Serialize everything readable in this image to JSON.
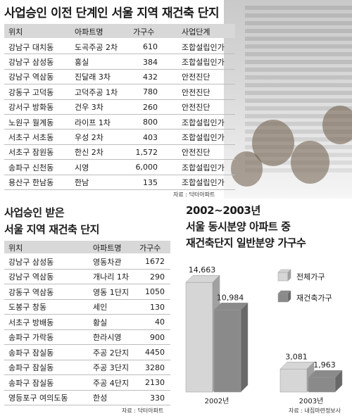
{
  "table1": {
    "title": "사업승인 이전 단계인 서울 지역 재건축 단지",
    "headers": [
      "위치",
      "아파트명",
      "가구수",
      "사업단계"
    ],
    "rows": [
      [
        "강남구 대치동",
        "도곡주공 2차",
        "610",
        "조합설립인가"
      ],
      [
        "강남구 삼성동",
        "홍실",
        "384",
        "조합설립인가"
      ],
      [
        "강남구 역삼동",
        "진달래 3차",
        "432",
        "안전진단"
      ],
      [
        "강동구 고덕동",
        "고덕주공 1차",
        "780",
        "안전진단"
      ],
      [
        "강서구 방화동",
        "건우 3차",
        "260",
        "안전진단"
      ],
      [
        "노원구 월계동",
        "라이프 1차",
        "800",
        "조합설립인가"
      ],
      [
        "서초구 서초동",
        "우성 2차",
        "403",
        "조합설립인가"
      ],
      [
        "서초구 잠원동",
        "한신 2차",
        "1,572",
        "안전진단"
      ],
      [
        "송파구 신천동",
        "시영",
        "6,000",
        "조합설립인가"
      ],
      [
        "용산구 한남동",
        "한남",
        "135",
        "조합설립인가"
      ]
    ],
    "source": "자료 : 닥터아파트"
  },
  "table2": {
    "title_line1": "사업승인 받은",
    "title_line2": "서울 지역 재건축 단지",
    "headers": [
      "위치",
      "아파트명",
      "가구수"
    ],
    "rows": [
      [
        "강남구 삼성동",
        "영동차관",
        "1672"
      ],
      [
        "강남구 역삼동",
        "개나리 1차",
        "290"
      ],
      [
        "강동구 역삼동",
        "영동 1단지",
        "1050"
      ],
      [
        "도봉구 창동",
        "세인",
        "130"
      ],
      [
        "서초구 방배동",
        "황실",
        "40"
      ],
      [
        "송파구 가락동",
        "한라시영",
        "900"
      ],
      [
        "송파구 잠실동",
        "주공 2단지",
        "4450"
      ],
      [
        "송파구 잠실동",
        "주공 3단지",
        "3280"
      ],
      [
        "송파구 잠실동",
        "주공 4단지",
        "2130"
      ],
      [
        "영등포구 여의도동",
        "한성",
        "330"
      ]
    ],
    "source": "자료 : 닥터아파트"
  },
  "chart_data": {
    "type": "bar",
    "title_line1": "2002~2003년",
    "title_line2": "서울 동시분양 아파트 중",
    "title_line3": "재건축단지 일반분양 가구수",
    "categories": [
      "2002년",
      "2003년"
    ],
    "series": [
      {
        "name": "전체가구",
        "values": [
          14663,
          3081
        ],
        "color": "#d6d6d6"
      },
      {
        "name": "재건축가구",
        "values": [
          10984,
          1963
        ],
        "color": "#8a8a8a"
      }
    ],
    "data_labels": [
      [
        "14,663",
        "3,081"
      ],
      [
        "10,984",
        "1,963"
      ]
    ],
    "ylim": [
      0,
      16000
    ],
    "legend": "right",
    "source": "자료 : 내집마련정보사"
  }
}
